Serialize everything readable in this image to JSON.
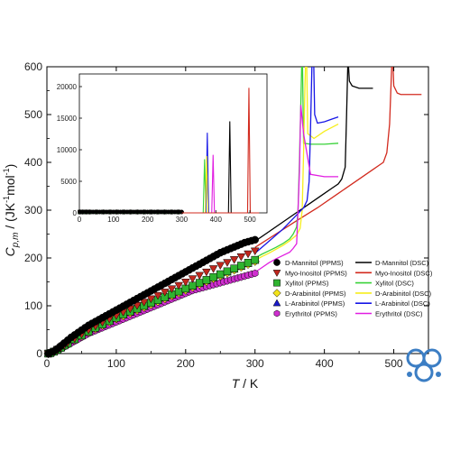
{
  "chart_data": {
    "type": "scatter",
    "main": {
      "xlim": [
        0,
        550
      ],
      "ylim": [
        0,
        600
      ],
      "xticks": [
        "0",
        "100",
        "200",
        "300",
        "400",
        "500"
      ],
      "yticks": [
        "0",
        "100",
        "200",
        "300",
        "400",
        "500",
        "600"
      ],
      "xlabel_italic": "T",
      "xlabel_unit": " / K",
      "ylabel_italic_main": "C",
      "ylabel_italic_sub": "p,m",
      "ylabel_unit_open": " / (JK",
      "ylabel_unit_exp1": "-1",
      "ylabel_unit_mid": "mol",
      "ylabel_unit_exp2": "-1",
      "ylabel_unit_close": ")"
    },
    "inset": {
      "xlim": [
        0,
        550
      ],
      "ylim": [
        0,
        22000
      ],
      "xticks": [
        "0",
        "100",
        "200",
        "300",
        "400",
        "500"
      ],
      "yticks": [
        "0",
        "5000",
        "10000",
        "15000",
        "20000"
      ]
    },
    "series": [
      {
        "name": "D-Mannitol (PPMS)",
        "color": "#000000",
        "marker": "circle",
        "x": [
          2,
          5,
          10,
          15,
          20,
          25,
          30,
          35,
          40,
          45,
          50,
          55,
          60,
          65,
          70,
          75,
          80,
          85,
          90,
          95,
          100,
          105,
          110,
          115,
          120,
          125,
          130,
          135,
          140,
          145,
          150,
          155,
          160,
          165,
          170,
          175,
          180,
          185,
          190,
          195,
          200,
          205,
          210,
          215,
          220,
          225,
          230,
          235,
          240,
          245,
          250,
          255,
          260,
          265,
          270,
          275,
          280,
          285,
          290,
          295,
          300
        ],
        "y": [
          0,
          2,
          5,
          10,
          16,
          22,
          28,
          34,
          39,
          44,
          49,
          54,
          59,
          63,
          67,
          71,
          75,
          79,
          83,
          87,
          91,
          95,
          99,
          103,
          107,
          111,
          115,
          119,
          123,
          127,
          131,
          135,
          139,
          143,
          147,
          151,
          155,
          159,
          163,
          167,
          171,
          175,
          179,
          183,
          187,
          191,
          195,
          199,
          203,
          207,
          211,
          214,
          217,
          220,
          223,
          226,
          229,
          232,
          234,
          236,
          238
        ]
      },
      {
        "name": "Myo-Inositol (PPMS)",
        "color": "#c0271d",
        "marker": "triangle-down",
        "x": [
          2,
          5,
          10,
          15,
          20,
          25,
          30,
          40,
          50,
          60,
          70,
          80,
          90,
          100,
          110,
          120,
          130,
          140,
          150,
          160,
          170,
          180,
          190,
          200,
          210,
          220,
          230,
          240,
          250,
          260,
          270,
          280,
          290,
          300
        ],
        "y": [
          0,
          1,
          4,
          8,
          13,
          18,
          23,
          32,
          41,
          50,
          58,
          66,
          73,
          80,
          87,
          94,
          101,
          108,
          115,
          122,
          129,
          136,
          143,
          150,
          157,
          164,
          171,
          178,
          185,
          191,
          197,
          203,
          209,
          215
        ]
      },
      {
        "name": "Xylitol (PPMS)",
        "color": "#2fb32f",
        "marker": "square",
        "x": [
          2,
          5,
          10,
          15,
          20,
          25,
          30,
          40,
          50,
          60,
          70,
          80,
          90,
          100,
          110,
          120,
          130,
          140,
          150,
          160,
          170,
          180,
          190,
          200,
          210,
          220,
          230,
          240,
          250,
          260,
          270,
          280,
          290,
          300
        ],
        "y": [
          0,
          1,
          4,
          8,
          12,
          17,
          21,
          30,
          38,
          46,
          54,
          61,
          68,
          75,
          82,
          88,
          94,
          100,
          106,
          112,
          118,
          124,
          130,
          136,
          142,
          148,
          154,
          160,
          166,
          172,
          178,
          184,
          190,
          196
        ]
      },
      {
        "name": "D-Arabinitol (PPMS)",
        "color": "#f2e21a",
        "marker": "diamond",
        "x": [
          2,
          5,
          10,
          15,
          20,
          25,
          30,
          40,
          50,
          60,
          70,
          80,
          90,
          100,
          110,
          120,
          130,
          140,
          150,
          160,
          170,
          180,
          190,
          200,
          210,
          220,
          230,
          240,
          250,
          260,
          270,
          280,
          290,
          300
        ],
        "y": [
          0,
          1,
          4,
          8,
          12,
          16,
          20,
          29,
          37,
          45,
          52,
          59,
          66,
          73,
          79,
          85,
          91,
          97,
          103,
          109,
          115,
          121,
          127,
          133,
          139,
          145,
          151,
          157,
          163,
          169,
          175,
          181,
          187,
          193
        ]
      },
      {
        "name": "L-Arabinitol (PPMS)",
        "color": "#1a1acb",
        "marker": "triangle-up",
        "x": [
          2,
          5,
          10,
          15,
          20,
          25,
          30,
          40,
          50,
          60,
          70,
          80,
          90,
          100,
          110,
          120,
          130,
          140,
          150,
          160,
          170,
          180,
          190,
          200,
          210,
          220,
          230,
          240,
          250,
          260,
          270,
          280,
          290,
          300
        ],
        "y": [
          0,
          1,
          4,
          8,
          12,
          17,
          21,
          30,
          38,
          46,
          53,
          60,
          67,
          74,
          80,
          86,
          92,
          98,
          104,
          110,
          116,
          122,
          128,
          134,
          140,
          146,
          152,
          158,
          164,
          170,
          176,
          182,
          188,
          195
        ]
      },
      {
        "name": "Erythritol (PPMS)",
        "color": "#cf2fcf",
        "marker": "hexagon",
        "x": [
          2,
          5,
          10,
          15,
          20,
          25,
          30,
          35,
          40,
          45,
          50,
          55,
          60,
          65,
          70,
          75,
          80,
          85,
          90,
          95,
          100,
          105,
          110,
          115,
          120,
          125,
          130,
          135,
          140,
          145,
          150,
          155,
          160,
          165,
          170,
          175,
          180,
          185,
          190,
          195,
          200,
          205,
          210,
          215,
          220,
          225,
          230,
          235,
          240,
          245,
          250,
          255,
          260,
          265,
          270,
          275,
          280,
          285,
          290,
          295,
          300
        ],
        "y": [
          0,
          1,
          3,
          6,
          10,
          14,
          18,
          22,
          26,
          30,
          34,
          38,
          42,
          45,
          48,
          51,
          54,
          57,
          60,
          63,
          66,
          69,
          72,
          75,
          78,
          81,
          84,
          87,
          90,
          93,
          96,
          99,
          102,
          105,
          108,
          111,
          114,
          117,
          120,
          123,
          126,
          129,
          132,
          134,
          136,
          138,
          140,
          142,
          144,
          146,
          148,
          150,
          152,
          154,
          156,
          158,
          160,
          162,
          164,
          166,
          168
        ]
      }
    ],
    "dsc_series": [
      {
        "name": "D-Mannitol (DSC)",
        "color": "#000000",
        "x": [
          300,
          320,
          340,
          360,
          380,
          400,
          410,
          420,
          425,
          430,
          432,
          434,
          436,
          440,
          450,
          460,
          470
        ],
        "y": [
          235,
          255,
          275,
          295,
          315,
          335,
          345,
          355,
          365,
          390,
          500,
          620,
          570,
          560,
          555,
          555,
          555
        ]
      },
      {
        "name": "Myo-Inositol (DSC)",
        "color": "#d22a1e",
        "x": [
          300,
          330,
          360,
          390,
          420,
          450,
          470,
          480,
          485,
          490,
          494,
          496,
          498,
          500,
          505,
          510,
          525,
          540
        ],
        "y": [
          222,
          250,
          278,
          305,
          335,
          365,
          385,
          395,
          400,
          420,
          480,
          560,
          640,
          560,
          545,
          542,
          542,
          542
        ]
      },
      {
        "name": "Xylitol (DSC)",
        "color": "#39d239",
        "x": [
          300,
          310,
          320,
          330,
          340,
          350,
          355,
          360,
          362,
          364,
          366,
          368,
          370,
          380,
          400,
          420
        ],
        "y": [
          200,
          208,
          215,
          222,
          230,
          240,
          250,
          265,
          300,
          400,
          520,
          650,
          440,
          438,
          438,
          440
        ]
      },
      {
        "name": "D-Arabinitol (DSC)",
        "color": "#f6ee1c",
        "x": [
          300,
          310,
          320,
          330,
          340,
          350,
          360,
          365,
          368,
          370,
          372,
          374,
          376,
          385,
          400,
          420
        ],
        "y": [
          195,
          203,
          210,
          218,
          226,
          236,
          248,
          262,
          300,
          420,
          560,
          660,
          460,
          450,
          465,
          480
        ]
      },
      {
        "name": "L-Arabinitol (DSC)",
        "color": "#1616e6",
        "x": [
          300,
          320,
          340,
          360,
          370,
          375,
          378,
          380,
          382,
          384,
          386,
          390,
          400,
          410,
          420
        ],
        "y": [
          210,
          235,
          260,
          290,
          305,
          320,
          360,
          470,
          600,
          660,
          500,
          482,
          485,
          490,
          495
        ]
      },
      {
        "name": "Erythritol (DSC)",
        "color": "#e11ee1",
        "x": [
          300,
          310,
          320,
          330,
          340,
          350,
          355,
          360,
          362,
          364,
          366,
          370,
          380,
          400,
          420
        ],
        "y": [
          170,
          180,
          190,
          198,
          205,
          212,
          220,
          230,
          300,
          380,
          520,
          460,
          375,
          370,
          370
        ]
      }
    ],
    "legend_left": [
      "D-Mannitol (PPMS)",
      "Myo-Inositol (PPMS)",
      "Xylitol (PPMS)",
      "D-Arabinitol (PPMS)",
      "L-Arabinitol (PPMS)",
      "Erythritol (PPMS)"
    ],
    "legend_right": [
      "D-Mannitol (DSC)",
      "Myo-Inositol (DSC)",
      "Xylitol (DSC)",
      "D-Arabinitol (DSC)",
      "L-Arabinitol (DSC)",
      "Erythritol (DSC)"
    ],
    "inset_peaks": [
      {
        "name": "Xylitol (DSC)",
        "color": "#39d239",
        "x": 367,
        "peak": 8500,
        "base": 0
      },
      {
        "name": "L-Arabinitol (DSC)",
        "color": "#1616e6",
        "x": 375,
        "peak": 12700,
        "base": 0
      },
      {
        "name": "D-Arabinitol (DSC)",
        "color": "#f6ee1c",
        "x": 373,
        "peak": 9000,
        "base": 0
      },
      {
        "name": "Erythritol (DSC)",
        "color": "#e11ee1",
        "x": 392,
        "peak": 9200,
        "base": 0
      },
      {
        "name": "D-Mannitol (DSC)",
        "color": "#000000",
        "x": 441,
        "peak": 14500,
        "base": 0
      },
      {
        "name": "Myo-Inositol (DSC)",
        "color": "#d22a1e",
        "x": 497,
        "peak": 19800,
        "base": 0
      }
    ],
    "grid": false,
    "legend_position": "bottom-right"
  },
  "watermark": {
    "color": "#3c7ec4"
  }
}
